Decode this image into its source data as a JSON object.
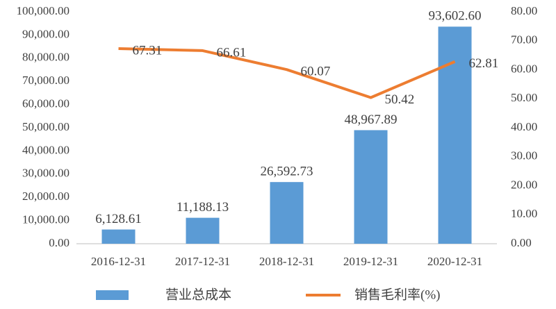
{
  "chart_data": {
    "type": "combo",
    "categories": [
      "2016-12-31",
      "2017-12-31",
      "2018-12-31",
      "2019-12-31",
      "2020-12-31"
    ],
    "series": [
      {
        "name": "营业总成本",
        "type": "bar",
        "color": "#5b9bd5",
        "values": [
          6128.61,
          11188.13,
          26592.73,
          48967.89,
          93602.6
        ],
        "value_labels": [
          "6,128.61",
          "11,188.13",
          "26,592.73",
          "48,967.89",
          "93,602.60"
        ]
      },
      {
        "name": "销售毛利率(%)",
        "type": "line",
        "axis": "y2",
        "color": "#ed7d31",
        "values": [
          67.31,
          66.61,
          60.07,
          50.42,
          62.81
        ]
      }
    ],
    "ylim": [
      0,
      100000
    ],
    "yticks": [
      {
        "value": 0,
        "label": "0.00"
      },
      {
        "value": 10000,
        "label": "10,000.00"
      },
      {
        "value": 20000,
        "label": "20,000.00"
      },
      {
        "value": 30000,
        "label": "30,000.00"
      },
      {
        "value": 40000,
        "label": "40,000.00"
      },
      {
        "value": 50000,
        "label": "50,000.00"
      },
      {
        "value": 60000,
        "label": "60,000.00"
      },
      {
        "value": 70000,
        "label": "70,000.00"
      },
      {
        "value": 80000,
        "label": "80,000.00"
      },
      {
        "value": 90000,
        "label": "90,000.00"
      },
      {
        "value": 100000,
        "label": "100,000.00"
      }
    ],
    "y2lim": [
      0,
      80
    ],
    "y2ticks": [
      {
        "value": 0,
        "label": "0.00"
      },
      {
        "value": 10,
        "label": "10.00"
      },
      {
        "value": 20,
        "label": "20.00"
      },
      {
        "value": 30,
        "label": "30.00"
      },
      {
        "value": 40,
        "label": "40.00"
      },
      {
        "value": 50,
        "label": "50.00"
      },
      {
        "value": 60,
        "label": "60.00"
      },
      {
        "value": 70,
        "label": "70.00"
      },
      {
        "value": 80,
        "label": "80.00"
      }
    ],
    "grid": false,
    "legend": "bottom"
  }
}
